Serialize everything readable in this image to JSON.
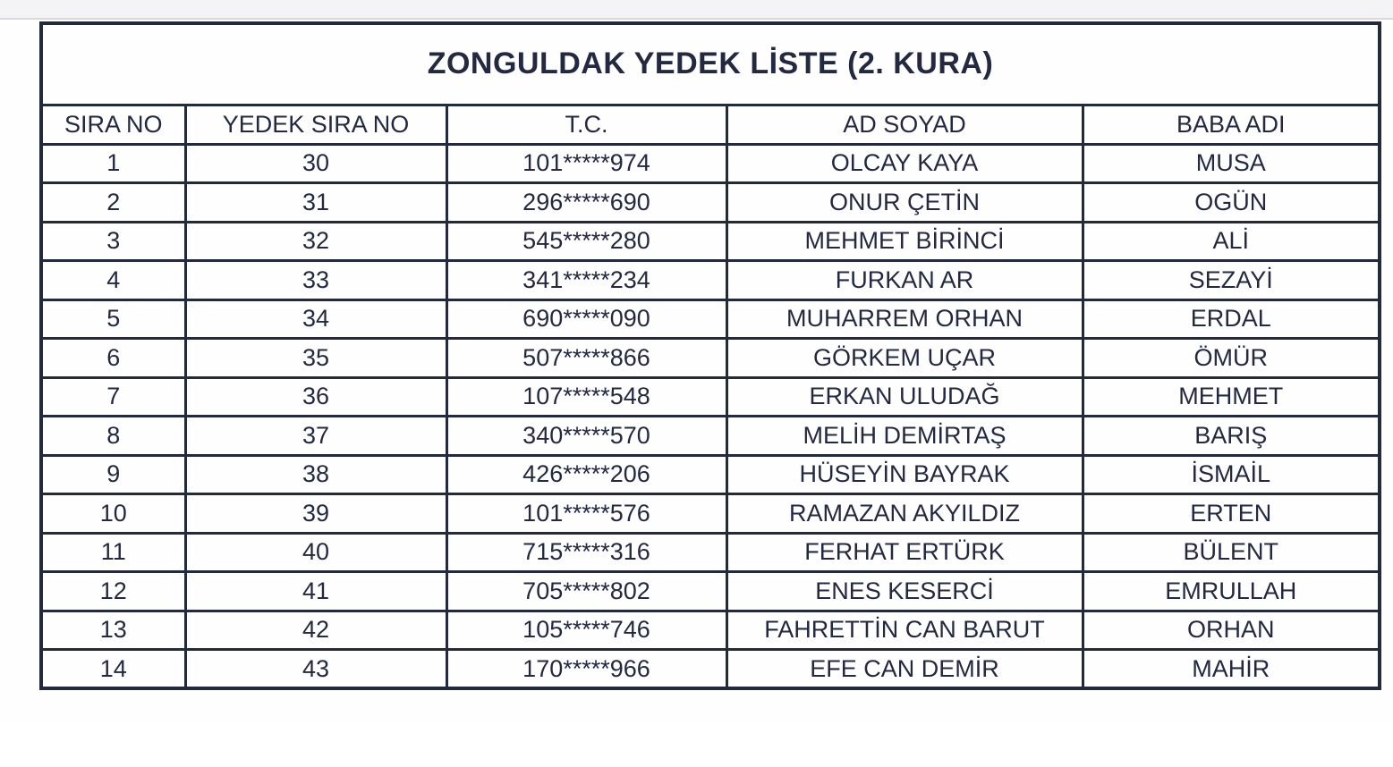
{
  "document": {
    "title": "ZONGULDAK YEDEK  LİSTE (2. KURA)",
    "columns": [
      "SIRA NO",
      "YEDEK SIRA NO",
      "T.C.",
      "AD SOYAD",
      "BABA ADI"
    ],
    "rows": [
      [
        "1",
        "30",
        "101*****974",
        "OLCAY KAYA",
        "MUSA"
      ],
      [
        "2",
        "31",
        "296*****690",
        "ONUR ÇETİN",
        "OGÜN"
      ],
      [
        "3",
        "32",
        "545*****280",
        "MEHMET BİRİNCİ",
        "ALİ"
      ],
      [
        "4",
        "33",
        "341*****234",
        "FURKAN AR",
        "SEZAYİ"
      ],
      [
        "5",
        "34",
        "690*****090",
        "MUHARREM ORHAN",
        "ERDAL"
      ],
      [
        "6",
        "35",
        "507*****866",
        "GÖRKEM UÇAR",
        "ÖMÜR"
      ],
      [
        "7",
        "36",
        "107*****548",
        "ERKAN ULUDAĞ",
        "MEHMET"
      ],
      [
        "8",
        "37",
        "340*****570",
        "MELİH DEMİRTAŞ",
        "BARIŞ"
      ],
      [
        "9",
        "38",
        "426*****206",
        "HÜSEYİN BAYRAK",
        "İSMAİL"
      ],
      [
        "10",
        "39",
        "101*****576",
        "RAMAZAN AKYILDIZ",
        "ERTEN"
      ],
      [
        "11",
        "40",
        "715*****316",
        "FERHAT ERTÜRK",
        "BÜLENT"
      ],
      [
        "12",
        "41",
        "705*****802",
        "ENES KESERCİ",
        "EMRULLAH"
      ],
      [
        "13",
        "42",
        "105*****746",
        "FAHRETTİN CAN BARUT",
        "ORHAN"
      ],
      [
        "14",
        "43",
        "170*****966",
        "EFE CAN DEMİR",
        "MAHİR"
      ]
    ],
    "colors": {
      "ink": "#232a3b",
      "page": "#ffffff",
      "top_bar": "#f4f4f6"
    }
  }
}
